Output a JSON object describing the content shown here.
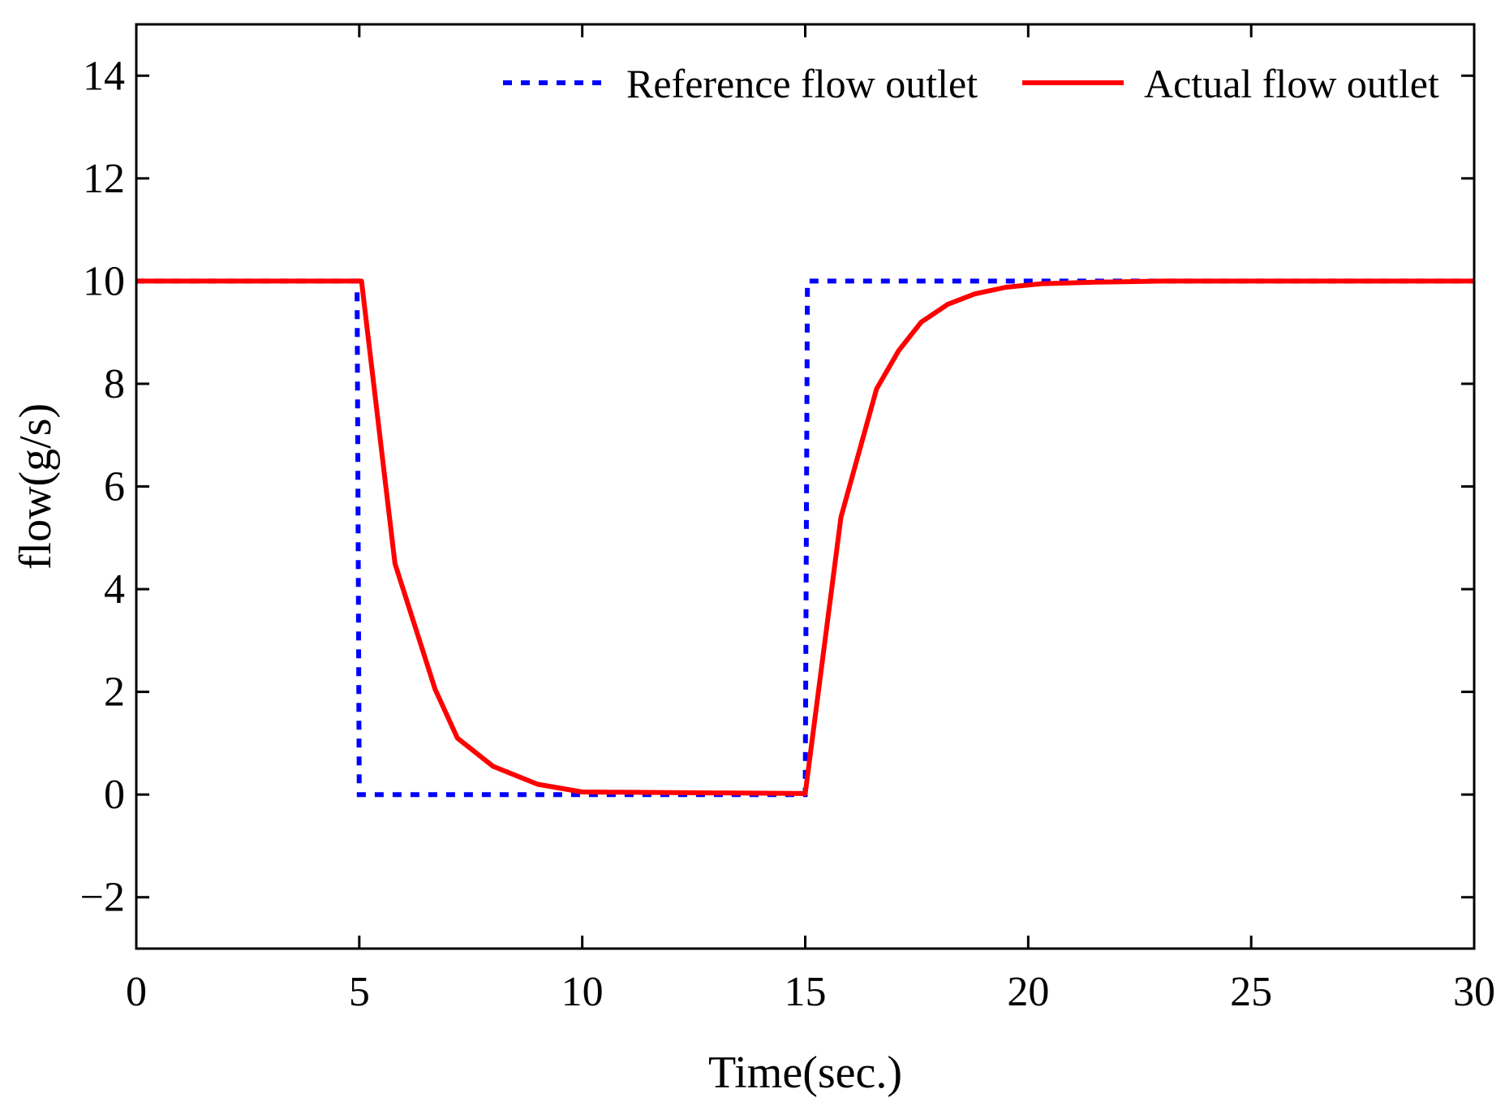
{
  "chart_data": {
    "type": "line",
    "title": "",
    "xlabel": "Time(sec.)",
    "ylabel": "flow(g/s)",
    "xlim": [
      0,
      30
    ],
    "ylim": [
      -3,
      15
    ],
    "xticks": [
      0,
      5,
      10,
      15,
      20,
      25,
      30
    ],
    "xtick_labels": [
      "0",
      "5",
      "10",
      "15",
      "20",
      "25",
      "30"
    ],
    "yticks": [
      -2,
      0,
      2,
      4,
      6,
      8,
      10,
      12,
      14
    ],
    "ytick_labels": [
      "−2",
      "0",
      "2",
      "4",
      "6",
      "8",
      "10",
      "12",
      "14"
    ],
    "grid": false,
    "legend_position": "top-right",
    "series": [
      {
        "name": "Reference flow outlet",
        "color": "#0000ff",
        "style": "dotted",
        "x": [
          0,
          4.95,
          5.0,
          15.0,
          15.05,
          30
        ],
        "y": [
          10,
          10,
          0,
          0,
          10,
          10
        ]
      },
      {
        "name": "Actual flow outlet",
        "color": "#ff0000",
        "style": "solid",
        "x": [
          0,
          5.05,
          5.8,
          6.7,
          7.2,
          8.0,
          9.0,
          10.0,
          15.0,
          15.8,
          16.6,
          17.1,
          17.6,
          18.2,
          18.8,
          19.5,
          20.3,
          21.5,
          23.0,
          30.0
        ],
        "y": [
          10,
          10,
          4.5,
          2.05,
          1.1,
          0.55,
          0.2,
          0.05,
          0.02,
          5.4,
          7.9,
          8.65,
          9.2,
          9.55,
          9.75,
          9.88,
          9.95,
          9.98,
          10.0,
          10.0
        ]
      }
    ]
  }
}
